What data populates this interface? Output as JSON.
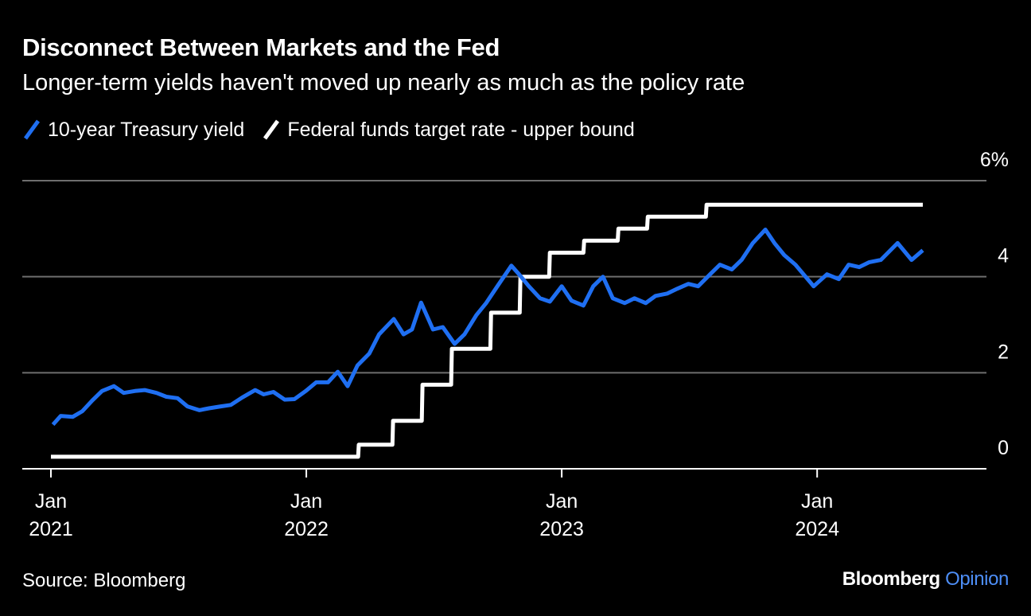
{
  "header": {
    "title": "Disconnect Between Markets and the Fed",
    "subtitle": "Longer-term yields haven't moved up nearly as much as the policy rate"
  },
  "footer": {
    "source": "Source: Bloomberg",
    "brand_main": "Bloomberg",
    "brand_accent": "Opinion"
  },
  "colors": {
    "background": "#000000",
    "treasury": "#1f6ff2",
    "fedfunds": "#ffffff",
    "grid": "#6e6e6e",
    "brand_accent": "#4d8ef7"
  },
  "chart_data": {
    "type": "line",
    "title": "Disconnect Between Markets and the Fed",
    "subtitle": "Longer-term yields haven't moved up nearly as much as the policy rate",
    "xlabel": "",
    "ylabel": "",
    "ylim": [
      0,
      6
    ],
    "yticks": [
      {
        "value": 6,
        "label": "6%"
      },
      {
        "value": 4,
        "label": "4"
      },
      {
        "value": 2,
        "label": "2"
      },
      {
        "value": 0,
        "label": "0"
      }
    ],
    "xrange": [
      "2021-01-01",
      "2024-05-31"
    ],
    "xticks": [
      {
        "date": "2021-01-01",
        "line1": "Jan",
        "line2": "2021"
      },
      {
        "date": "2022-01-01",
        "line1": "Jan",
        "line2": "2022"
      },
      {
        "date": "2023-01-01",
        "line1": "Jan",
        "line2": "2023"
      },
      {
        "date": "2024-01-01",
        "line1": "Jan",
        "line2": "2024"
      }
    ],
    "grid": true,
    "legend_position": "top-left",
    "series": [
      {
        "name": "10-year Treasury yield",
        "color": "#1f6ff2",
        "points": [
          [
            "2021-01-04",
            0.92
          ],
          [
            "2021-01-15",
            1.1
          ],
          [
            "2021-02-01",
            1.08
          ],
          [
            "2021-02-15",
            1.2
          ],
          [
            "2021-03-01",
            1.42
          ],
          [
            "2021-03-15",
            1.62
          ],
          [
            "2021-04-01",
            1.72
          ],
          [
            "2021-04-15",
            1.58
          ],
          [
            "2021-05-01",
            1.62
          ],
          [
            "2021-05-15",
            1.64
          ],
          [
            "2021-06-01",
            1.58
          ],
          [
            "2021-06-15",
            1.5
          ],
          [
            "2021-07-01",
            1.47
          ],
          [
            "2021-07-15",
            1.3
          ],
          [
            "2021-08-01",
            1.22
          ],
          [
            "2021-08-15",
            1.26
          ],
          [
            "2021-09-01",
            1.3
          ],
          [
            "2021-09-15",
            1.33
          ],
          [
            "2021-10-01",
            1.48
          ],
          [
            "2021-10-20",
            1.64
          ],
          [
            "2021-11-01",
            1.55
          ],
          [
            "2021-11-15",
            1.6
          ],
          [
            "2021-12-01",
            1.44
          ],
          [
            "2021-12-15",
            1.45
          ],
          [
            "2022-01-01",
            1.63
          ],
          [
            "2022-01-15",
            1.8
          ],
          [
            "2022-02-01",
            1.8
          ],
          [
            "2022-02-15",
            2.02
          ],
          [
            "2022-03-01",
            1.72
          ],
          [
            "2022-03-15",
            2.15
          ],
          [
            "2022-04-01",
            2.4
          ],
          [
            "2022-04-15",
            2.8
          ],
          [
            "2022-05-06",
            3.12
          ],
          [
            "2022-05-20",
            2.8
          ],
          [
            "2022-06-01",
            2.9
          ],
          [
            "2022-06-14",
            3.46
          ],
          [
            "2022-07-01",
            2.9
          ],
          [
            "2022-07-15",
            2.95
          ],
          [
            "2022-08-01",
            2.6
          ],
          [
            "2022-08-15",
            2.8
          ],
          [
            "2022-09-01",
            3.2
          ],
          [
            "2022-09-15",
            3.45
          ],
          [
            "2022-10-01",
            3.8
          ],
          [
            "2022-10-21",
            4.23
          ],
          [
            "2022-11-01",
            4.05
          ],
          [
            "2022-11-15",
            3.8
          ],
          [
            "2022-12-01",
            3.55
          ],
          [
            "2022-12-15",
            3.48
          ],
          [
            "2023-01-01",
            3.8
          ],
          [
            "2023-01-15",
            3.5
          ],
          [
            "2023-02-01",
            3.4
          ],
          [
            "2023-02-15",
            3.8
          ],
          [
            "2023-03-01",
            4.0
          ],
          [
            "2023-03-15",
            3.55
          ],
          [
            "2023-04-01",
            3.45
          ],
          [
            "2023-04-15",
            3.55
          ],
          [
            "2023-05-01",
            3.45
          ],
          [
            "2023-05-15",
            3.6
          ],
          [
            "2023-06-01",
            3.65
          ],
          [
            "2023-06-15",
            3.75
          ],
          [
            "2023-07-01",
            3.85
          ],
          [
            "2023-07-15",
            3.8
          ],
          [
            "2023-08-01",
            4.05
          ],
          [
            "2023-08-15",
            4.25
          ],
          [
            "2023-09-01",
            4.15
          ],
          [
            "2023-09-15",
            4.35
          ],
          [
            "2023-10-01",
            4.7
          ],
          [
            "2023-10-19",
            4.98
          ],
          [
            "2023-11-01",
            4.7
          ],
          [
            "2023-11-15",
            4.45
          ],
          [
            "2023-12-01",
            4.25
          ],
          [
            "2023-12-27",
            3.8
          ],
          [
            "2024-01-15",
            4.05
          ],
          [
            "2024-02-01",
            3.95
          ],
          [
            "2024-02-15",
            4.25
          ],
          [
            "2024-03-01",
            4.2
          ],
          [
            "2024-03-15",
            4.3
          ],
          [
            "2024-04-01",
            4.35
          ],
          [
            "2024-04-25",
            4.7
          ],
          [
            "2024-05-15",
            4.35
          ],
          [
            "2024-05-31",
            4.55
          ]
        ]
      },
      {
        "name": "Federal funds target rate - upper bound",
        "color": "#ffffff",
        "points": [
          [
            "2021-01-01",
            0.25
          ],
          [
            "2022-03-16",
            0.25
          ],
          [
            "2022-03-17",
            0.5
          ],
          [
            "2022-05-04",
            0.5
          ],
          [
            "2022-05-05",
            1.0
          ],
          [
            "2022-06-15",
            1.0
          ],
          [
            "2022-06-16",
            1.75
          ],
          [
            "2022-07-27",
            1.75
          ],
          [
            "2022-07-28",
            2.5
          ],
          [
            "2022-09-21",
            2.5
          ],
          [
            "2022-09-22",
            3.25
          ],
          [
            "2022-11-02",
            3.25
          ],
          [
            "2022-11-03",
            4.0
          ],
          [
            "2022-12-14",
            4.0
          ],
          [
            "2022-12-15",
            4.5
          ],
          [
            "2023-02-01",
            4.5
          ],
          [
            "2023-02-02",
            4.75
          ],
          [
            "2023-03-22",
            4.75
          ],
          [
            "2023-03-23",
            5.0
          ],
          [
            "2023-05-03",
            5.0
          ],
          [
            "2023-05-04",
            5.25
          ],
          [
            "2023-07-26",
            5.25
          ],
          [
            "2023-07-27",
            5.5
          ],
          [
            "2024-05-31",
            5.5
          ]
        ]
      }
    ]
  }
}
